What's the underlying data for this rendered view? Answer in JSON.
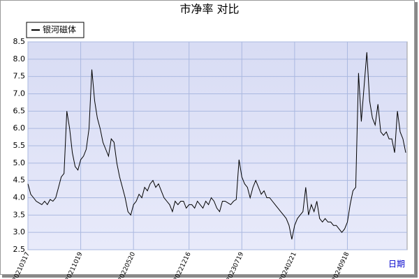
{
  "chart_data": {
    "type": "line",
    "title": "市净率  对比",
    "x_label": "日期",
    "categories": [
      "20210317",
      null,
      null,
      null,
      null,
      null,
      null,
      null,
      null,
      null,
      null,
      null,
      null,
      null,
      null,
      null,
      null,
      null,
      null,
      "20211019",
      null,
      null,
      null,
      null,
      null,
      null,
      null,
      null,
      null,
      null,
      null,
      null,
      null,
      null,
      null,
      null,
      null,
      null,
      "20220520",
      null,
      null,
      null,
      null,
      null,
      null,
      null,
      null,
      null,
      null,
      null,
      null,
      null,
      null,
      null,
      null,
      null,
      null,
      null,
      "20221216",
      null,
      null,
      null,
      null,
      null,
      null,
      null,
      null,
      null,
      null,
      null,
      null,
      null,
      null,
      null,
      null,
      null,
      null,
      "20230719",
      null,
      null,
      null,
      null,
      null,
      null,
      null,
      null,
      null,
      null,
      null,
      null,
      null,
      null,
      null,
      null,
      null,
      null,
      "20240221",
      null,
      null,
      null,
      null,
      null,
      null,
      null,
      null,
      null,
      null,
      null,
      null,
      null,
      null,
      null,
      null,
      null,
      null,
      "20240918",
      null,
      null,
      null,
      null,
      null,
      null,
      null,
      null,
      null,
      null,
      null,
      null,
      null,
      null,
      null,
      null,
      null,
      null,
      null,
      null,
      null
    ],
    "series": [
      {
        "name": "银河磁体",
        "color": "#000000",
        "values": [
          4.4,
          4.1,
          4.0,
          3.9,
          3.85,
          3.8,
          3.9,
          3.8,
          3.95,
          3.9,
          4.0,
          4.3,
          4.6,
          4.7,
          6.5,
          6.0,
          5.3,
          4.9,
          4.8,
          5.1,
          5.2,
          5.4,
          6.0,
          7.7,
          6.8,
          6.3,
          6.0,
          5.6,
          5.4,
          5.2,
          5.7,
          5.6,
          5.0,
          4.6,
          4.3,
          4.0,
          3.6,
          3.5,
          3.8,
          3.9,
          4.1,
          4.0,
          4.3,
          4.2,
          4.4,
          4.5,
          4.3,
          4.4,
          4.2,
          4.0,
          3.9,
          3.8,
          3.6,
          3.9,
          3.8,
          3.9,
          3.9,
          3.7,
          3.8,
          3.8,
          3.7,
          3.9,
          3.8,
          3.7,
          3.9,
          3.8,
          4.0,
          3.9,
          3.7,
          3.6,
          3.9,
          3.9,
          3.85,
          3.8,
          3.9,
          3.95,
          5.1,
          4.6,
          4.4,
          4.3,
          4.0,
          4.3,
          4.5,
          4.3,
          4.1,
          4.2,
          4.0,
          4.0,
          3.9,
          3.8,
          3.7,
          3.6,
          3.5,
          3.4,
          3.2,
          2.8,
          3.2,
          3.4,
          3.5,
          3.6,
          4.3,
          3.5,
          3.8,
          3.6,
          3.9,
          3.4,
          3.3,
          3.4,
          3.3,
          3.3,
          3.2,
          3.2,
          3.1,
          3.0,
          3.1,
          3.3,
          3.8,
          4.2,
          4.3,
          7.6,
          6.2,
          7.2,
          8.2,
          6.8,
          6.3,
          6.1,
          6.7,
          5.9,
          5.8,
          5.9,
          5.7,
          5.7,
          5.3,
          6.5,
          5.9,
          5.7,
          5.3
        ]
      }
    ],
    "ylim": [
      2.5,
      8.5
    ],
    "yticks": [
      2.5,
      {
        "value": 3,
        "label": "3.0"
      },
      3.5,
      {
        "value": 4,
        "label": "4.0"
      },
      4.5,
      {
        "value": 5,
        "label": "5.0"
      },
      5.5,
      {
        "value": 6,
        "label": "6.0"
      },
      6.5,
      {
        "value": 7,
        "label": "7.0"
      },
      7.5,
      {
        "value": 8,
        "label": "8.0"
      },
      8.5
    ],
    "grid": true,
    "legend": "top-left"
  }
}
